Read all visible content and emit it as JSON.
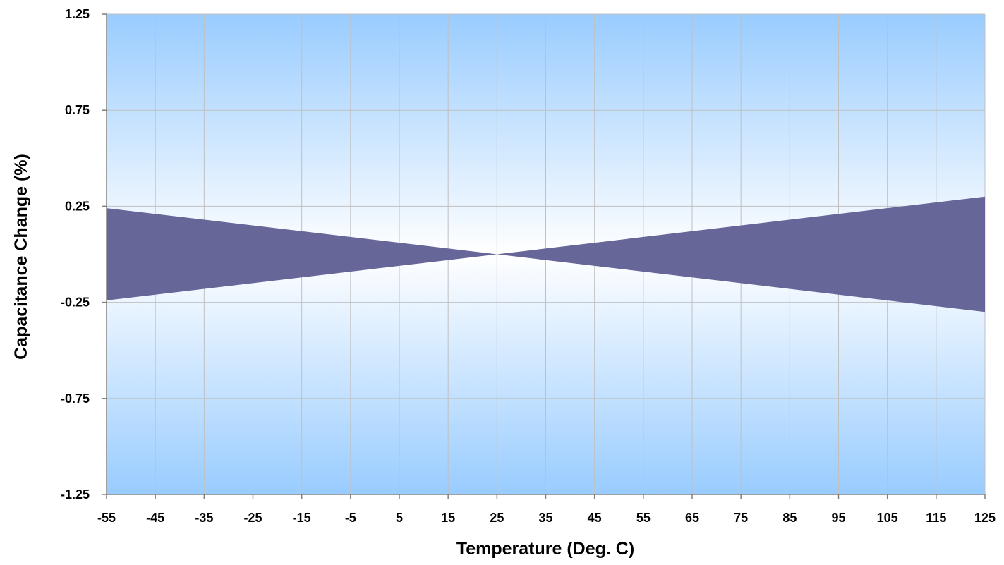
{
  "chart_data": {
    "type": "area",
    "title": "",
    "xlabel": "Temperature (Deg. C)",
    "ylabel": "Capacitance Change (%)",
    "x_ticks": [
      -55,
      -45,
      -35,
      -25,
      -15,
      -5,
      5,
      15,
      25,
      35,
      45,
      55,
      65,
      75,
      85,
      95,
      105,
      115,
      125
    ],
    "y_ticks": [
      -1.25,
      -0.75,
      -0.25,
      0.25,
      0.75,
      1.25
    ],
    "y_tick_labels": [
      "-1.25",
      "-0.75",
      "-0.25",
      "0.25",
      "0.75",
      "1.25"
    ],
    "xlim": [
      -55,
      125
    ],
    "ylim": [
      -1.25,
      1.25
    ],
    "grid": true,
    "series": [
      {
        "x": [
          -55,
          25,
          125
        ],
        "upper": [
          0.24,
          0.0,
          0.3
        ],
        "lower": [
          -0.24,
          0.0,
          -0.3
        ]
      }
    ],
    "colors": {
      "band": "#666699",
      "background_edge": "#99ccff",
      "background_center": "#ffffff",
      "gridline": "#c0c0c0",
      "axis": "#808080"
    }
  }
}
